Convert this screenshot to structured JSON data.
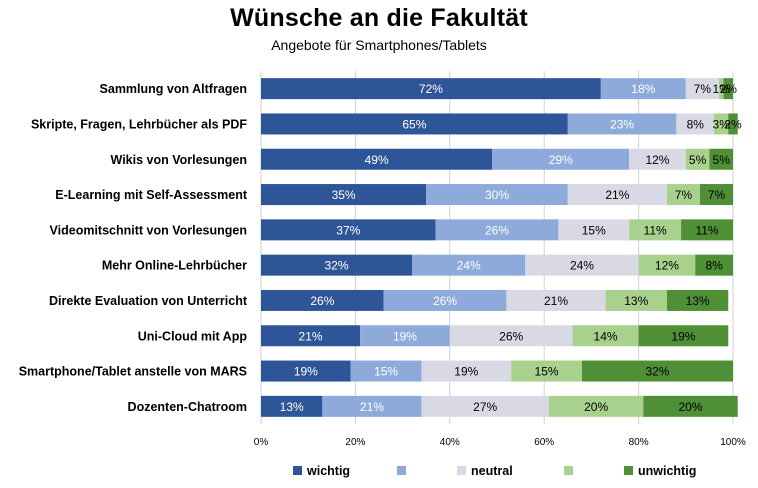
{
  "chart_data": {
    "type": "bar",
    "orientation": "horizontal",
    "stacked": true,
    "title": "Wünsche an die Fakultät",
    "subtitle": "Angebote für Smartphones/Tablets",
    "categories": [
      "Sammlung von Altfragen",
      "Skripte, Fragen, Lehrbücher als PDF",
      "Wikis von Vorlesungen",
      "E-Learning mit Self-Assessment",
      "Videomitschnitt von Vorlesungen",
      "Mehr Online-Lehrbücher",
      "Direkte Evaluation von Unterricht",
      "Uni-Cloud mit App",
      "Smartphone/Tablet anstelle von MARS",
      "Dozenten-Chatroom"
    ],
    "series": [
      {
        "name": "wichtig",
        "color": "#2E5597",
        "values": [
          72,
          65,
          49,
          35,
          37,
          32,
          26,
          21,
          19,
          13
        ]
      },
      {
        "name": "",
        "color": "#8EAADB",
        "values": [
          18,
          23,
          29,
          30,
          26,
          24,
          26,
          19,
          15,
          21
        ]
      },
      {
        "name": "neutral",
        "color": "#D9D9E6",
        "values": [
          7,
          8,
          12,
          21,
          15,
          24,
          21,
          26,
          19,
          27
        ]
      },
      {
        "name": "",
        "color": "#A9D18E",
        "values": [
          1,
          3,
          5,
          7,
          11,
          12,
          13,
          14,
          15,
          20
        ]
      },
      {
        "name": "unwichtig",
        "color": "#4F8F35",
        "values": [
          2,
          2,
          5,
          7,
          11,
          8,
          13,
          19,
          32,
          20
        ]
      }
    ],
    "data_labels": [
      [
        "72%",
        "18%",
        "7%",
        "1%",
        "2%"
      ],
      [
        "65%",
        "23%",
        "8%",
        "3%",
        "2%"
      ],
      [
        "49%",
        "29%",
        "12%",
        "5%",
        "5%"
      ],
      [
        "35%",
        "30%",
        "21%",
        "7%",
        "7%"
      ],
      [
        "37%",
        "26%",
        "15%",
        "11%",
        "11%"
      ],
      [
        "32%",
        "24%",
        "24%",
        "12%",
        "8%"
      ],
      [
        "26%",
        "26%",
        "21%",
        "13%",
        "13%"
      ],
      [
        "21%",
        "19%",
        "26%",
        "14%",
        "19%"
      ],
      [
        "19%",
        "15%",
        "19%",
        "15%",
        "32%"
      ],
      [
        "13%",
        "21%",
        "27%",
        "20%",
        "20%"
      ]
    ],
    "xlim": [
      0,
      100
    ],
    "x_ticks": [
      "0%",
      "20%",
      "40%",
      "60%",
      "80%",
      "100%"
    ],
    "xlabel": "",
    "ylabel": "",
    "grid": true,
    "legend": "bottom",
    "legend_entries": [
      "wichtig",
      "",
      "neutral",
      "",
      "unwichtig"
    ]
  }
}
